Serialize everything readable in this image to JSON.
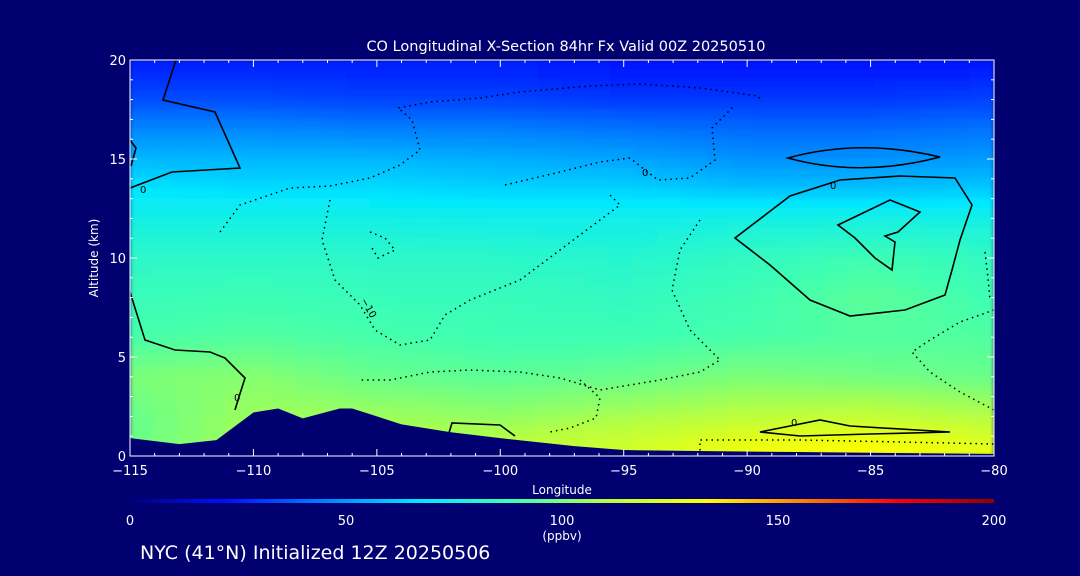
{
  "chart_data": {
    "type": "heatmap",
    "title": "CO Longitudinal X-Section 84hr  Fx Valid 00Z 20250510",
    "xlabel": "Longitude",
    "ylabel": "Altitude (km)",
    "xlim": [
      -115,
      -80
    ],
    "ylim": [
      0,
      20
    ],
    "x_ticks": [
      -115,
      -110,
      -105,
      -100,
      -95,
      -90,
      -85,
      -80
    ],
    "x_tick_labels": [
      "−115",
      "−110",
      "−105",
      "−100",
      "−95",
      "−90",
      "−85",
      "−80"
    ],
    "y_ticks": [
      0,
      5,
      10,
      15,
      20
    ],
    "y_tick_labels": [
      "0",
      "5",
      "10",
      "15",
      "20"
    ],
    "colorbar": {
      "min": 0,
      "max": 200,
      "ticks": [
        0,
        50,
        100,
        150,
        200
      ],
      "tick_labels": [
        "0",
        "50",
        "100",
        "150",
        "200"
      ],
      "unit": "(ppbv)",
      "colors": [
        "#000078",
        "#0010ff",
        "#0080ff",
        "#00e8ff",
        "#40ffb0",
        "#b8ff40",
        "#ffff00",
        "#ff8000",
        "#ff0000",
        "#900000"
      ]
    },
    "altitude_levels_km": [
      0.5,
      2,
      4,
      6,
      8,
      10,
      12,
      13.5,
      15,
      16.5,
      18,
      19.5
    ],
    "longitude_columns": [
      -115,
      -110,
      -105,
      -100,
      -95,
      -90,
      -85,
      -80
    ],
    "co_ppbv": [
      [
        96,
        108,
        110,
        112,
        118,
        128,
        132,
        124
      ],
      [
        96,
        106,
        106,
        104,
        108,
        112,
        114,
        110
      ],
      [
        100,
        102,
        96,
        94,
        96,
        100,
        98,
        96
      ],
      [
        90,
        92,
        90,
        88,
        88,
        90,
        92,
        92
      ],
      [
        86,
        88,
        86,
        86,
        84,
        88,
        94,
        88
      ],
      [
        82,
        82,
        82,
        82,
        80,
        84,
        88,
        84
      ],
      [
        74,
        74,
        74,
        72,
        72,
        74,
        74,
        74
      ],
      [
        66,
        64,
        64,
        62,
        62,
        58,
        58,
        60
      ],
      [
        56,
        56,
        56,
        54,
        52,
        48,
        48,
        50
      ],
      [
        46,
        46,
        44,
        44,
        42,
        40,
        40,
        42
      ],
      [
        34,
        34,
        32,
        32,
        30,
        30,
        30,
        32
      ],
      [
        26,
        26,
        26,
        26,
        24,
        24,
        24,
        24
      ]
    ],
    "terrain_km": [
      [
        -115,
        0.9
      ],
      [
        -113,
        0.6
      ],
      [
        -111.5,
        0.8
      ],
      [
        -110,
        2.2
      ],
      [
        -109,
        2.4
      ],
      [
        -108,
        1.9
      ],
      [
        -106.5,
        2.4
      ],
      [
        -106,
        2.4
      ],
      [
        -104,
        1.6
      ],
      [
        -102,
        1.2
      ],
      [
        -100,
        0.9
      ],
      [
        -97,
        0.5
      ],
      [
        -95,
        0.3
      ],
      [
        -92,
        0.25
      ],
      [
        -88,
        0.2
      ],
      [
        -84,
        0.15
      ],
      [
        -80,
        0.1
      ]
    ],
    "contour_labels": [
      "0",
      "0",
      "−10",
      "0",
      "0",
      "0"
    ]
  },
  "footer": {
    "text": "NYC (41°N) Initialized 12Z 20250506"
  }
}
